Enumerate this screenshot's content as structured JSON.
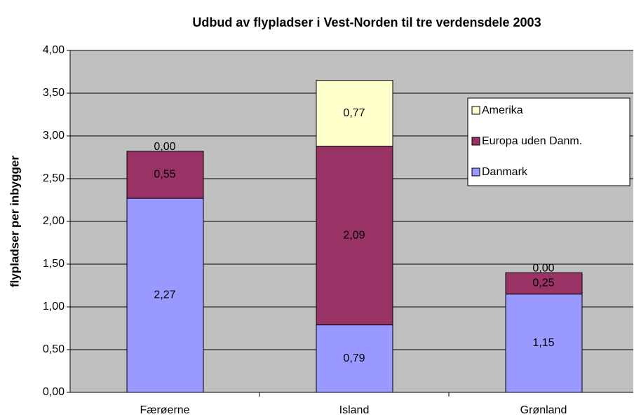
{
  "chart_data": {
    "type": "stacked_bar",
    "title": "Udbud av flypladser i Vest-Norden til tre verdensdele 2003",
    "ylabel": "flypladser per inbygger",
    "categories": [
      "Færøerne",
      "Island",
      "Grønland"
    ],
    "series": [
      {
        "name": "Danmark",
        "color": "#9999ff",
        "values": [
          2.27,
          0.79,
          1.15
        ],
        "value_labels": [
          "2,27",
          "0,79",
          "1,15"
        ]
      },
      {
        "name": "Europa uden Danm.",
        "color": "#993366",
        "values": [
          0.55,
          2.09,
          0.25
        ],
        "value_labels": [
          "0,55",
          "2,09",
          "0,25"
        ]
      },
      {
        "name": "Amerika",
        "color": "#ffffcc",
        "values": [
          0,
          0.77,
          0
        ],
        "value_labels": [
          "0,00",
          "0,77",
          "0,00"
        ]
      }
    ],
    "ylim": [
      0,
      4
    ],
    "yticks": [
      {
        "value": 0,
        "label": "0,00"
      },
      {
        "value": 0.5,
        "label": "0,50"
      },
      {
        "value": 1,
        "label": "1,00"
      },
      {
        "value": 1.5,
        "label": "1,50"
      },
      {
        "value": 2,
        "label": "2,00"
      },
      {
        "value": 2.5,
        "label": "2,50"
      },
      {
        "value": 3,
        "label": "3,00"
      },
      {
        "value": 3.5,
        "label": "3,50"
      },
      {
        "value": 4,
        "label": "4,00"
      }
    ],
    "grid": true,
    "legend": "right"
  }
}
